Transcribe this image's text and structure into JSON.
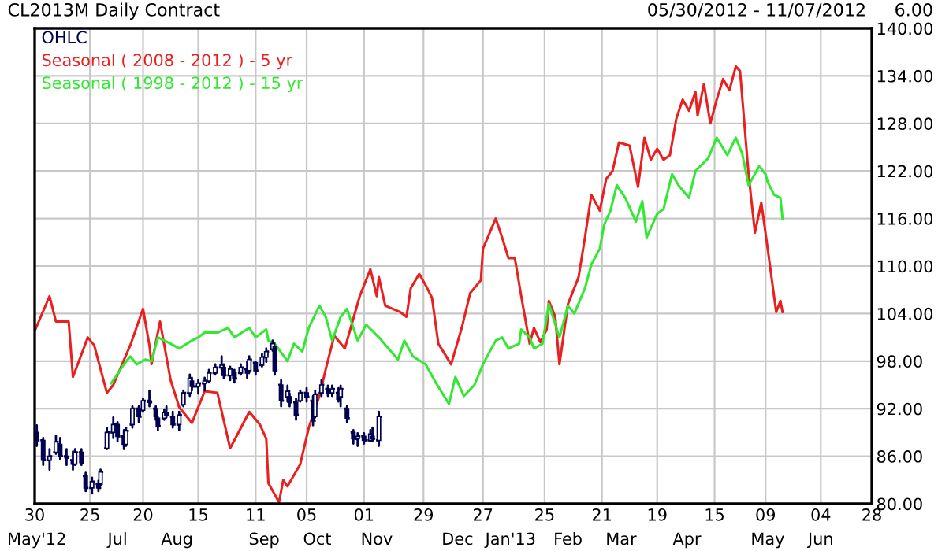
{
  "chart_data": {
    "type": "line",
    "title": "CL2013M Daily Contract",
    "annotations": [
      "05/30/2012 - 11/07/2012",
      "6.00"
    ],
    "xlim": [
      "2012-05-30",
      "2013-06-28"
    ],
    "ylim": [
      80,
      140
    ],
    "xticks": [
      {
        "value": "2012-05-30",
        "label": "30"
      },
      {
        "value": "2012-06-25",
        "label": "25"
      },
      {
        "value": "2012-07-20",
        "label": "20"
      },
      {
        "value": "2012-08-15",
        "label": "15"
      },
      {
        "value": "2012-09-11",
        "label": "11"
      },
      {
        "value": "2012-10-05",
        "label": "05"
      },
      {
        "value": "2012-11-01",
        "label": "01"
      },
      {
        "value": "2012-11-29",
        "label": "29"
      },
      {
        "value": "2012-12-27",
        "label": "27"
      },
      {
        "value": "2013-01-25",
        "label": "25"
      },
      {
        "value": "2013-02-21",
        "label": "21"
      },
      {
        "value": "2013-03-19",
        "label": "19"
      },
      {
        "value": "2013-04-15",
        "label": "15"
      },
      {
        "value": "2013-05-09",
        "label": "09"
      },
      {
        "value": "2013-06-04",
        "label": "04"
      },
      {
        "value": "2013-06-28",
        "label": "28"
      }
    ],
    "x2lim": [
      "2012-05-30",
      "2013-06-28"
    ],
    "x2ticks": [
      {
        "value": "2012-05-31",
        "label": "May'12"
      },
      {
        "value": "2012-07-08",
        "label": "Jul"
      },
      {
        "value": "2012-08-05",
        "label": "Aug"
      },
      {
        "value": "2012-09-15",
        "label": "Sep"
      },
      {
        "value": "2012-10-10",
        "label": "Oct"
      },
      {
        "value": "2012-11-07",
        "label": "Nov"
      },
      {
        "value": "2012-12-15",
        "label": "Dec"
      },
      {
        "value": "2013-01-09",
        "label": "Jan'13"
      },
      {
        "value": "2013-02-05",
        "label": "Feb"
      },
      {
        "value": "2013-03-02",
        "label": "Mar"
      },
      {
        "value": "2013-04-02",
        "label": "Apr"
      },
      {
        "value": "2013-05-10",
        "label": "May"
      },
      {
        "value": "2013-06-04",
        "label": "Jun"
      }
    ],
    "yticks": [
      {
        "value": 80,
        "label": "80.00"
      },
      {
        "value": 86,
        "label": "86.00"
      },
      {
        "value": 92,
        "label": "92.00"
      },
      {
        "value": 98,
        "label": "98.00"
      },
      {
        "value": 104,
        "label": "104.00"
      },
      {
        "value": 110,
        "label": "110.00"
      },
      {
        "value": 116,
        "label": "116.00"
      },
      {
        "value": 122,
        "label": "122.00"
      },
      {
        "value": 128,
        "label": "128.00"
      },
      {
        "value": 134,
        "label": "134.00"
      },
      {
        "value": 140,
        "label": "140.00"
      }
    ],
    "grid": true,
    "legend": "top left",
    "series": [
      {
        "name": "OHLC",
        "type": "candlestick",
        "color": "#000050",
        "x": [
          "2012-05-31",
          "2012-06-03",
          "2012-06-06",
          "2012-06-09",
          "2012-06-11",
          "2012-06-14",
          "2012-06-17",
          "2012-06-18",
          "2012-06-21",
          "2012-06-23",
          "2012-06-26",
          "2012-06-29",
          "2012-06-30",
          "2012-07-03",
          "2012-07-06",
          "2012-07-08",
          "2012-07-11",
          "2012-07-12",
          "2012-07-15",
          "2012-07-18",
          "2012-07-20",
          "2012-07-23",
          "2012-07-26",
          "2012-07-27",
          "2012-07-30",
          "2012-07-31",
          "2012-08-03",
          "2012-08-06",
          "2012-08-08",
          "2012-08-11",
          "2012-08-12",
          "2012-08-15",
          "2012-08-18",
          "2012-08-20",
          "2012-08-23",
          "2012-08-26",
          "2012-08-27",
          "2012-08-30",
          "2012-09-01",
          "2012-09-04",
          "2012-09-07",
          "2012-09-08",
          "2012-09-11",
          "2012-09-14",
          "2012-09-16",
          "2012-09-19",
          "2012-09-20",
          "2012-09-23",
          "2012-09-26",
          "2012-09-27",
          "2012-09-30",
          "2012-10-02",
          "2012-10-05",
          "2012-10-08",
          "2012-10-09",
          "2012-10-12",
          "2012-10-15",
          "2012-10-17",
          "2012-10-20",
          "2012-10-21",
          "2012-10-24",
          "2012-10-27",
          "2012-10-29",
          "2012-11-01",
          "2012-11-04",
          "2012-11-05",
          "2012-11-08"
        ],
        "ohlc": [
          [
            89.0,
            89.9,
            87.3,
            88.0
          ],
          [
            88.0,
            88.3,
            84.9,
            85.5
          ],
          [
            85.5,
            86.9,
            84.3,
            86.0
          ],
          [
            86.5,
            88.6,
            86.3,
            87.8
          ],
          [
            87.5,
            88.3,
            85.6,
            86.0
          ],
          [
            86.0,
            86.9,
            84.9,
            85.8
          ],
          [
            85.5,
            86.6,
            84.3,
            85.0
          ],
          [
            85.0,
            86.9,
            84.9,
            86.5
          ],
          [
            86.5,
            86.9,
            84.9,
            85.2
          ],
          [
            83.5,
            83.9,
            81.6,
            82.0
          ],
          [
            82.0,
            83.3,
            81.3,
            82.8
          ],
          [
            82.5,
            82.9,
            81.6,
            82.0
          ],
          [
            82.5,
            84.3,
            82.3,
            84.0
          ],
          [
            87.0,
            89.6,
            86.9,
            89.0
          ],
          [
            89.0,
            90.9,
            88.3,
            90.0
          ],
          [
            90.0,
            90.3,
            87.9,
            88.5
          ],
          [
            88.5,
            89.3,
            86.9,
            87.5
          ],
          [
            87.5,
            89.6,
            87.3,
            89.2
          ],
          [
            90.0,
            92.3,
            89.6,
            92.0
          ],
          [
            92.0,
            92.3,
            90.3,
            91.0
          ],
          [
            91.8,
            93.3,
            91.6,
            93.0
          ],
          [
            93.0,
            94.3,
            92.3,
            92.8
          ],
          [
            92.0,
            92.3,
            90.6,
            91.0
          ],
          [
            90.8,
            90.9,
            89.3,
            89.8
          ],
          [
            90.8,
            91.9,
            90.6,
            91.5
          ],
          [
            91.5,
            92.3,
            90.9,
            91.2
          ],
          [
            91.0,
            91.6,
            89.6,
            90.0
          ],
          [
            90.0,
            91.6,
            89.3,
            91.2
          ],
          [
            92.5,
            94.3,
            92.3,
            94.0
          ],
          [
            94.0,
            96.3,
            93.6,
            95.8
          ],
          [
            95.5,
            95.9,
            94.3,
            94.8
          ],
          [
            94.8,
            95.6,
            93.9,
            95.2
          ],
          [
            95.2,
            95.9,
            94.3,
            95.5
          ],
          [
            95.5,
            96.9,
            95.3,
            96.5
          ],
          [
            96.5,
            97.6,
            96.3,
            97.2
          ],
          [
            97.2,
            98.6,
            96.9,
            97.5
          ],
          [
            97.2,
            97.6,
            95.9,
            96.2
          ],
          [
            96.2,
            97.3,
            95.6,
            97.0
          ],
          [
            96.5,
            96.9,
            95.3,
            95.8
          ],
          [
            96.5,
            97.6,
            96.3,
            97.2
          ],
          [
            97.0,
            97.9,
            95.9,
            96.5
          ],
          [
            96.8,
            98.6,
            96.6,
            98.2
          ],
          [
            97.8,
            97.9,
            96.3,
            96.8
          ],
          [
            97.5,
            98.9,
            97.3,
            98.5
          ],
          [
            98.5,
            99.6,
            97.9,
            99.2
          ],
          [
            99.5,
            100.6,
            99.3,
            100.2
          ],
          [
            99.8,
            99.9,
            96.3,
            96.8
          ],
          [
            95.0,
            95.6,
            92.3,
            93.0
          ],
          [
            93.5,
            94.9,
            92.9,
            94.2
          ],
          [
            93.5,
            93.9,
            92.3,
            92.8
          ],
          [
            92.8,
            93.3,
            90.6,
            91.2
          ],
          [
            93.0,
            94.3,
            92.9,
            94.0
          ],
          [
            94.0,
            94.6,
            92.9,
            93.5
          ],
          [
            93.0,
            93.6,
            89.9,
            90.5
          ],
          [
            91.0,
            94.3,
            90.9,
            93.8
          ],
          [
            94.0,
            95.6,
            93.6,
            95.0
          ],
          [
            94.5,
            94.9,
            93.6,
            94.0
          ],
          [
            94.0,
            94.9,
            93.6,
            94.5
          ],
          [
            94.0,
            94.6,
            92.9,
            93.2
          ],
          [
            93.5,
            94.9,
            92.3,
            94.5
          ],
          [
            92.0,
            92.3,
            90.3,
            90.8
          ],
          [
            89.0,
            89.3,
            87.6,
            88.2
          ],
          [
            88.2,
            88.9,
            87.3,
            88.5
          ],
          [
            88.5,
            88.9,
            87.6,
            88.0
          ],
          [
            88.0,
            89.3,
            87.9,
            88.8
          ],
          [
            88.5,
            89.6,
            87.9,
            88.2
          ],
          [
            88.0,
            91.6,
            87.3,
            91.0
          ]
        ]
      },
      {
        "name": "Seasonal ( 2008 - 2012 ) - 5 yr",
        "type": "line",
        "color": "#e82020",
        "x": [
          "2012-05-30",
          "2012-06-06",
          "2012-06-09",
          "2012-06-15",
          "2012-06-17",
          "2012-06-24",
          "2012-06-27",
          "2012-07-03",
          "2012-07-06",
          "2012-07-14",
          "2012-07-20",
          "2012-07-23",
          "2012-07-24",
          "2012-07-28",
          "2012-08-02",
          "2012-08-06",
          "2012-08-12",
          "2012-08-18",
          "2012-08-24",
          "2012-08-30",
          "2012-09-08",
          "2012-09-13",
          "2012-09-16",
          "2012-09-17",
          "2012-09-22",
          "2012-09-24",
          "2012-09-26",
          "2012-10-02",
          "2012-10-06",
          "2012-10-11",
          "2012-10-14",
          "2012-10-18",
          "2012-10-23",
          "2012-10-30",
          "2012-11-04",
          "2012-11-07",
          "2012-11-08",
          "2012-11-11",
          "2012-11-18",
          "2012-11-21",
          "2012-11-23",
          "2012-11-27",
          "2012-11-30",
          "2012-12-03",
          "2012-12-06",
          "2012-12-12",
          "2012-12-17",
          "2012-12-21",
          "2012-12-26",
          "2012-12-27",
          "2013-01-02",
          "2013-01-05",
          "2013-01-08",
          "2013-01-11",
          "2013-01-14",
          "2013-01-18",
          "2013-01-20",
          "2013-01-23",
          "2013-01-26",
          "2013-01-27",
          "2013-01-30",
          "2013-02-01",
          "2013-02-05",
          "2013-02-10",
          "2013-02-13",
          "2013-02-16",
          "2013-02-20",
          "2013-02-23",
          "2013-02-26",
          "2013-03-01",
          "2013-03-06",
          "2013-03-10",
          "2013-03-13",
          "2013-03-16",
          "2013-03-19",
          "2013-03-22",
          "2013-03-25",
          "2013-03-28",
          "2013-03-31",
          "2013-04-03",
          "2013-04-06",
          "2013-04-07",
          "2013-04-10",
          "2013-04-13",
          "2013-04-16",
          "2013-04-19",
          "2013-04-22",
          "2013-04-25",
          "2013-04-27",
          "2013-05-01",
          "2013-05-04",
          "2013-05-07",
          "2013-05-10",
          "2013-05-13",
          "2013-05-14",
          "2013-05-16",
          "2013-05-17"
        ],
        "values": [
          101.8,
          106.2,
          103,
          103,
          96,
          101,
          100,
          94,
          95,
          100,
          104.6,
          100,
          97.6,
          103,
          95.6,
          92.2,
          90.2,
          94.2,
          94,
          87,
          91.6,
          90,
          88.2,
          82.6,
          80.2,
          83,
          82.2,
          85,
          89.6,
          93.6,
          97,
          101.2,
          99.6,
          106.2,
          109.6,
          106.2,
          108.6,
          105,
          104.2,
          103.6,
          107.2,
          109,
          107.6,
          106,
          100.2,
          97.6,
          102.2,
          106.6,
          108.2,
          112.2,
          116,
          113.6,
          111,
          111,
          106.2,
          100.2,
          102.2,
          100.4,
          102,
          105.6,
          103.6,
          97.6,
          105.2,
          108.6,
          113.6,
          119,
          117,
          121,
          122,
          125.6,
          125.2,
          120,
          126.2,
          123.4,
          124.8,
          123.4,
          124,
          128.6,
          131,
          129.6,
          132,
          129,
          133,
          128,
          131,
          133.6,
          132.2,
          135.2,
          134.6,
          121.6,
          114.2,
          118,
          112.2,
          106.2,
          104.2,
          105.6,
          104.2
        ]
      },
      {
        "name": "Seasonal ( 1998 - 2012 ) - 15 yr",
        "type": "line",
        "color": "#33e833",
        "x": [
          "2012-07-05",
          "2012-07-11",
          "2012-07-14",
          "2012-07-17",
          "2012-07-21",
          "2012-07-24",
          "2012-07-27",
          "2012-08-02",
          "2012-08-06",
          "2012-08-12",
          "2012-08-15",
          "2012-08-18",
          "2012-08-24",
          "2012-08-29",
          "2012-09-01",
          "2012-09-08",
          "2012-09-11",
          "2012-09-16",
          "2012-09-17",
          "2012-09-20",
          "2012-09-26",
          "2012-09-29",
          "2012-10-03",
          "2012-10-06",
          "2012-10-11",
          "2012-10-14",
          "2012-10-17",
          "2012-10-21",
          "2012-10-24",
          "2012-10-29",
          "2012-11-02",
          "2012-11-08",
          "2012-11-17",
          "2012-11-20",
          "2012-11-24",
          "2012-11-30",
          "2012-12-05",
          "2012-12-11",
          "2012-12-14",
          "2012-12-18",
          "2012-12-23",
          "2012-12-27",
          "2013-01-02",
          "2013-01-05",
          "2013-01-08",
          "2013-01-13",
          "2013-01-14",
          "2013-01-18",
          "2013-01-20",
          "2013-01-24",
          "2013-01-27",
          "2013-02-01",
          "2013-02-05",
          "2013-02-08",
          "2013-02-13",
          "2013-02-16",
          "2013-02-20",
          "2013-02-22",
          "2013-02-25",
          "2013-02-28",
          "2013-03-04",
          "2013-03-09",
          "2013-03-12",
          "2013-03-14",
          "2013-03-19",
          "2013-03-22",
          "2013-03-26",
          "2013-03-29",
          "2013-04-03",
          "2013-04-06",
          "2013-04-12",
          "2013-04-16",
          "2013-04-21",
          "2013-04-25",
          "2013-04-28",
          "2013-05-01",
          "2013-05-06",
          "2013-05-09",
          "2013-05-10",
          "2013-05-13",
          "2013-05-16",
          "2013-05-17"
        ],
        "values": [
          95.2,
          97.6,
          98.6,
          97.6,
          98.2,
          98,
          101,
          100.2,
          99.6,
          100.6,
          101,
          101.6,
          101.6,
          102.2,
          101,
          102.2,
          101,
          102,
          100.6,
          100.2,
          98,
          100.2,
          99.2,
          102.2,
          105,
          103.6,
          100.6,
          103.6,
          104.6,
          100.6,
          102.6,
          101,
          98.2,
          100.6,
          98.6,
          97.6,
          95.2,
          92.6,
          96,
          93.6,
          95,
          97.6,
          100.6,
          101,
          99.6,
          100.2,
          102,
          101,
          99.6,
          100.2,
          105.2,
          101,
          105,
          104,
          107.2,
          110.2,
          112.2,
          115.2,
          117,
          120.2,
          118.6,
          115.6,
          118.2,
          113.6,
          116.6,
          117.2,
          121.6,
          120.2,
          118.6,
          122,
          123.6,
          126.2,
          124,
          126.2,
          124.2,
          120.2,
          122.6,
          121.6,
          120.6,
          119,
          118.6,
          116
        ]
      }
    ]
  }
}
